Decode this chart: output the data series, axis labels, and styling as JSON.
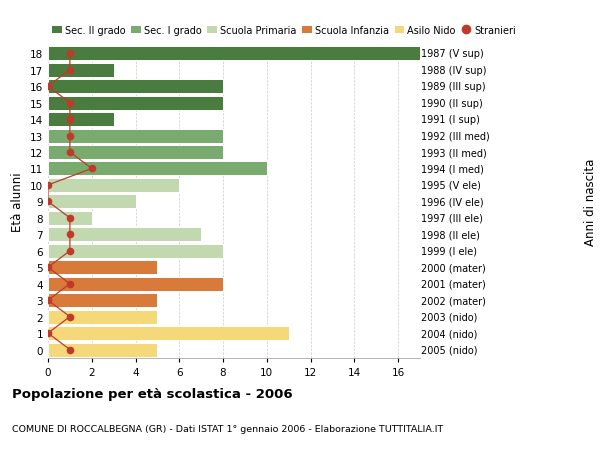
{
  "ages": [
    18,
    17,
    16,
    15,
    14,
    13,
    12,
    11,
    10,
    9,
    8,
    7,
    6,
    5,
    4,
    3,
    2,
    1,
    0
  ],
  "values": [
    17,
    3,
    8,
    8,
    3,
    8,
    8,
    10,
    6,
    4,
    2,
    7,
    8,
    5,
    8,
    5,
    5,
    11,
    5
  ],
  "bar_colors": [
    "#4a7c3f",
    "#4a7c3f",
    "#4a7c3f",
    "#4a7c3f",
    "#4a7c3f",
    "#7aab6e",
    "#7aab6e",
    "#7aab6e",
    "#c2d9b0",
    "#c2d9b0",
    "#c2d9b0",
    "#c2d9b0",
    "#c2d9b0",
    "#d87a3a",
    "#d87a3a",
    "#d87a3a",
    "#f5d87a",
    "#f5d87a",
    "#f5d87a"
  ],
  "stranieri": [
    1,
    1,
    0,
    1,
    1,
    1,
    1,
    2,
    0,
    0,
    1,
    1,
    1,
    0,
    1,
    0,
    1,
    0,
    1
  ],
  "right_labels": [
    "1987 (V sup)",
    "1988 (IV sup)",
    "1989 (III sup)",
    "1990 (II sup)",
    "1991 (I sup)",
    "1992 (III med)",
    "1993 (II med)",
    "1994 (I med)",
    "1995 (V ele)",
    "1996 (IV ele)",
    "1997 (III ele)",
    "1998 (II ele)",
    "1999 (I ele)",
    "2000 (mater)",
    "2001 (mater)",
    "2002 (mater)",
    "2003 (nido)",
    "2004 (nido)",
    "2005 (nido)"
  ],
  "legend_labels": [
    "Sec. II grado",
    "Sec. I grado",
    "Scuola Primaria",
    "Scuola Infanzia",
    "Asilo Nido",
    "Stranieri"
  ],
  "legend_colors": [
    "#4a7c3f",
    "#7aab6e",
    "#c2d9b0",
    "#d87a3a",
    "#f5d87a",
    "#c0392b"
  ],
  "title": "Popolazione per età scolastica - 2006",
  "subtitle": "COMUNE DI ROCCALBEGNA (GR) - Dati ISTAT 1° gennaio 2006 - Elaborazione TUTTITALIA.IT",
  "ylabel_left": "Età alunni",
  "ylabel_right": "Anni di nascita",
  "xlim": [
    0,
    17
  ],
  "background_color": "#ffffff",
  "bar_edge_color": "white",
  "grid_color": "#cccccc",
  "stranieri_color": "#c0392b"
}
